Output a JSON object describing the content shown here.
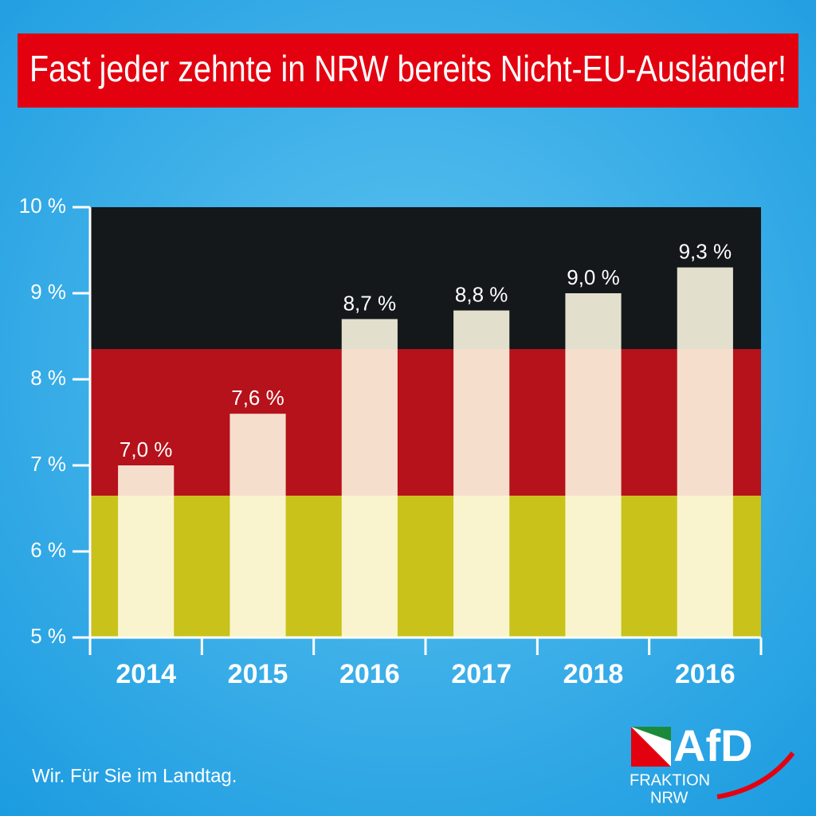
{
  "chart_data": {
    "type": "bar",
    "title": "Fast jeder zehnte in NRW bereits Nicht-EU-Ausländer!",
    "categories": [
      "2014",
      "2015",
      "2016",
      "2017",
      "2018",
      "2016"
    ],
    "values": [
      7.0,
      7.6,
      8.7,
      8.8,
      9.0,
      9.3
    ],
    "value_labels": [
      "7,0 %",
      "7,6 %",
      "8,7 %",
      "8,8 %",
      "9,0 %",
      "9,3 %"
    ],
    "color": "#fffbe6",
    "ylim": [
      5,
      10
    ],
    "yticks": [
      {
        "value": 5,
        "label": "5 %"
      },
      {
        "value": 6,
        "label": "6 %"
      },
      {
        "value": 7,
        "label": "7 %"
      },
      {
        "value": 8,
        "label": "8 %"
      },
      {
        "value": 9,
        "label": "9 %"
      },
      {
        "value": 10,
        "label": "10 %"
      }
    ],
    "grid": false
  },
  "footer": "Wir. Für Sie im Landtag.",
  "logo": {
    "name": "AfD",
    "line1": "FRAKTION",
    "line2": "NRW"
  }
}
